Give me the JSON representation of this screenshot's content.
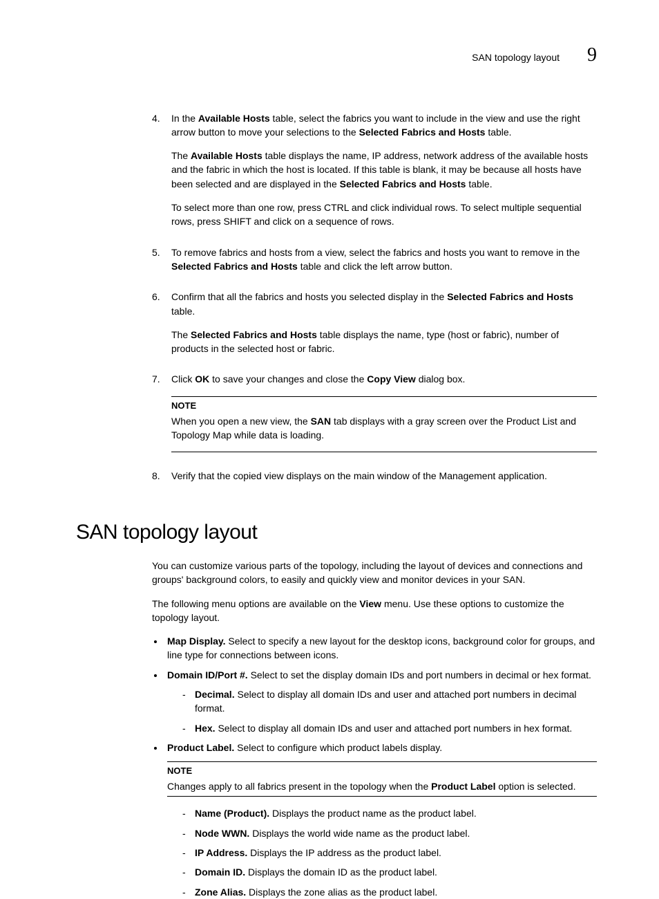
{
  "header": {
    "title": "SAN topology layout",
    "chapter": "9"
  },
  "steps": [
    {
      "num": "4.",
      "paragraphs": [
        {
          "runs": [
            "In the ",
            {
              "b": "Available Hosts"
            },
            " table, select the fabrics you want to include in the view and use the right arrow button to move your selections to the ",
            {
              "b": "Selected Fabrics and Hosts"
            },
            " table."
          ]
        },
        {
          "runs": [
            "The ",
            {
              "b": "Available Hosts"
            },
            " table displays the name, IP address, network address of the available hosts and the fabric in which the host is located. If this table is blank, it may be because all hosts have been selected and are displayed in the ",
            {
              "b": "Selected Fabrics and Hosts"
            },
            " table."
          ]
        },
        {
          "runs": [
            "To select more than one row, press CTRL and click individual rows. To select multiple sequential rows, press SHIFT and click on a sequence of rows."
          ]
        }
      ]
    },
    {
      "num": "5.",
      "paragraphs": [
        {
          "runs": [
            "To remove fabrics and hosts from a view, select the fabrics and hosts you want to remove in the ",
            {
              "b": "Selected Fabrics and Hosts"
            },
            " table and click the left arrow button."
          ]
        }
      ]
    },
    {
      "num": "6.",
      "paragraphs": [
        {
          "runs": [
            "Confirm that all the fabrics and hosts you selected display in the ",
            {
              "b": "Selected Fabrics and Hosts"
            },
            " table."
          ]
        },
        {
          "runs": [
            "The ",
            {
              "b": "Selected Fabrics and Hosts"
            },
            " table displays the name, type (host or fabric), number of products in the selected host or fabric."
          ]
        }
      ]
    },
    {
      "num": "7.",
      "paragraphs": [
        {
          "runs": [
            "Click ",
            {
              "b": "OK"
            },
            " to save your changes and close the ",
            {
              "b": "Copy View"
            },
            " dialog box."
          ]
        }
      ],
      "note": {
        "title": "NOTE",
        "runs": [
          "When you open a new view, the ",
          {
            "b": "SAN"
          },
          " tab displays with a gray screen over the Product List and Topology Map while data is loading."
        ]
      }
    },
    {
      "num": "8.",
      "paragraphs": [
        {
          "runs": [
            "Verify that the copied view displays on the main window of the Management application."
          ]
        }
      ]
    }
  ],
  "section": {
    "heading": "SAN topology layout",
    "intro": [
      {
        "runs": [
          "You can customize various parts of the topology, including the layout of devices and connections and groups' background colors, to easily and quickly view and monitor devices in your SAN."
        ]
      },
      {
        "runs": [
          "The following menu options are available on the ",
          {
            "b": "View"
          },
          " menu. Use these options to customize the topology layout."
        ]
      }
    ],
    "bullets": [
      {
        "runs": [
          {
            "b": "Map Display."
          },
          " Select to specify a new layout for the desktop icons, background color for groups, and line type for connections between icons."
        ]
      },
      {
        "runs": [
          {
            "b": "Domain ID/Port #."
          },
          " Select to set the display domain IDs and port numbers in decimal or hex format."
        ],
        "sub": [
          {
            "runs": [
              {
                "b": "Decimal."
              },
              " Select to display all domain IDs and user and attached port numbers in decimal format."
            ]
          },
          {
            "runs": [
              {
                "b": "Hex."
              },
              " Select to display all domain IDs and user and attached port numbers in hex format."
            ]
          }
        ]
      },
      {
        "runs": [
          {
            "b": "Product Label."
          },
          " Select to configure which product labels display."
        ],
        "note": {
          "title": "NOTE",
          "runs": [
            "Changes apply to all fabrics present in the topology when the ",
            {
              "b": "Product Label"
            },
            " option is selected."
          ]
        },
        "sub": [
          {
            "runs": [
              {
                "b": "Name (Product)."
              },
              " Displays the product name as the product label."
            ]
          },
          {
            "runs": [
              {
                "b": "Node WWN."
              },
              " Displays the world wide name as the product label."
            ]
          },
          {
            "runs": [
              {
                "b": "IP Address."
              },
              " Displays the IP address as the product label."
            ]
          },
          {
            "runs": [
              {
                "b": "Domain ID."
              },
              " Displays the domain ID as the product label."
            ]
          },
          {
            "runs": [
              {
                "b": "Zone Alias."
              },
              " Displays the zone alias as the product label."
            ]
          }
        ]
      }
    ]
  }
}
